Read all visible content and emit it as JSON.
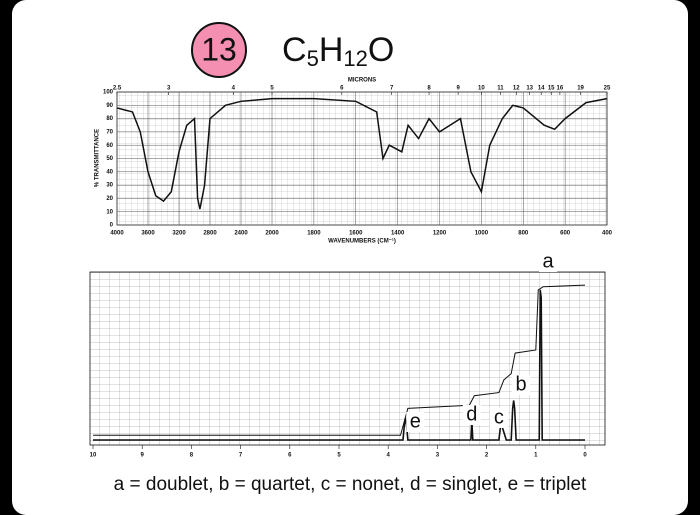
{
  "header": {
    "number": "13",
    "formula": [
      "C",
      "5",
      "H",
      "12",
      "O"
    ]
  },
  "chart_data": [
    {
      "type": "line",
      "x2_label": "MICRONS",
      "x_label": "WAVENUMBERS (CM⁻¹)",
      "y_label": "% TRANSMITTANCE",
      "x": [
        4000,
        3800,
        3700,
        3600,
        3500,
        3400,
        3300,
        3200,
        3100,
        3000,
        2960,
        2930,
        2870,
        2800,
        2600,
        2400,
        2200,
        2000,
        1800,
        1600,
        1500,
        1470,
        1440,
        1380,
        1350,
        1300,
        1250,
        1200,
        1150,
        1100,
        1050,
        1000,
        960,
        900,
        850,
        800,
        700,
        650,
        600,
        500,
        400
      ],
      "values": [
        88,
        85,
        70,
        40,
        22,
        18,
        25,
        55,
        75,
        80,
        20,
        12,
        30,
        80,
        90,
        93,
        94,
        95,
        95,
        93,
        85,
        50,
        60,
        55,
        75,
        65,
        80,
        70,
        75,
        80,
        40,
        25,
        60,
        80,
        90,
        88,
        75,
        72,
        80,
        92,
        95
      ],
      "color": "#111111",
      "xlim": [
        4000,
        400
      ],
      "xticks": [
        4000,
        3600,
        3200,
        2800,
        2400,
        2000,
        1800,
        1600,
        1400,
        1200,
        1000,
        800,
        600,
        400
      ],
      "x2ticks": [
        2.5,
        3,
        4,
        5,
        6,
        7,
        8,
        9,
        10,
        11,
        12,
        13,
        14,
        15,
        16,
        19,
        25
      ],
      "ylim": [
        0,
        100
      ],
      "yticks": [
        0,
        10,
        20,
        30,
        40,
        50,
        60,
        70,
        80,
        90,
        100
      ],
      "grid": true
    },
    {
      "type": "nmr",
      "xlim": [
        10,
        0
      ],
      "xticks": [
        10,
        9,
        8,
        7,
        6,
        5,
        4,
        3,
        2,
        1,
        0
      ],
      "ylim": [
        0,
        100
      ],
      "color": "#111111",
      "spectrum": {
        "x": [
          10,
          3.7,
          3.67,
          3.65,
          3.63,
          3.6,
          2.32,
          2.3,
          2.28,
          1.75,
          1.72,
          1.7,
          1.68,
          1.6,
          1.5,
          1.47,
          1.45,
          1.43,
          1.4,
          0.93,
          0.91,
          0.89,
          0.87,
          0
        ],
        "values": [
          0,
          0,
          10,
          14,
          10,
          0,
          0,
          12,
          0,
          0,
          8,
          10,
          8,
          0,
          0,
          20,
          25,
          20,
          0,
          0,
          95,
          90,
          0,
          0
        ]
      },
      "integral": {
        "x": [
          10,
          3.75,
          3.6,
          2.35,
          2.25,
          1.75,
          1.65,
          1.5,
          1.42,
          1.0,
          0.95,
          0.85,
          0
        ],
        "values": [
          3,
          3,
          20,
          22,
          28,
          30,
          38,
          42,
          55,
          57,
          95,
          97,
          98
        ]
      },
      "annotations": [
        {
          "text": "a",
          "x": 0.75
        },
        {
          "text": "b",
          "x": 1.3
        },
        {
          "text": "c",
          "x": 1.75
        },
        {
          "text": "d",
          "x": 2.3
        },
        {
          "text": "e",
          "x": 3.45
        }
      ]
    }
  ],
  "caption": "a = doublet,  b = quartet,  c = nonet,  d = singlet,  e = triplet"
}
